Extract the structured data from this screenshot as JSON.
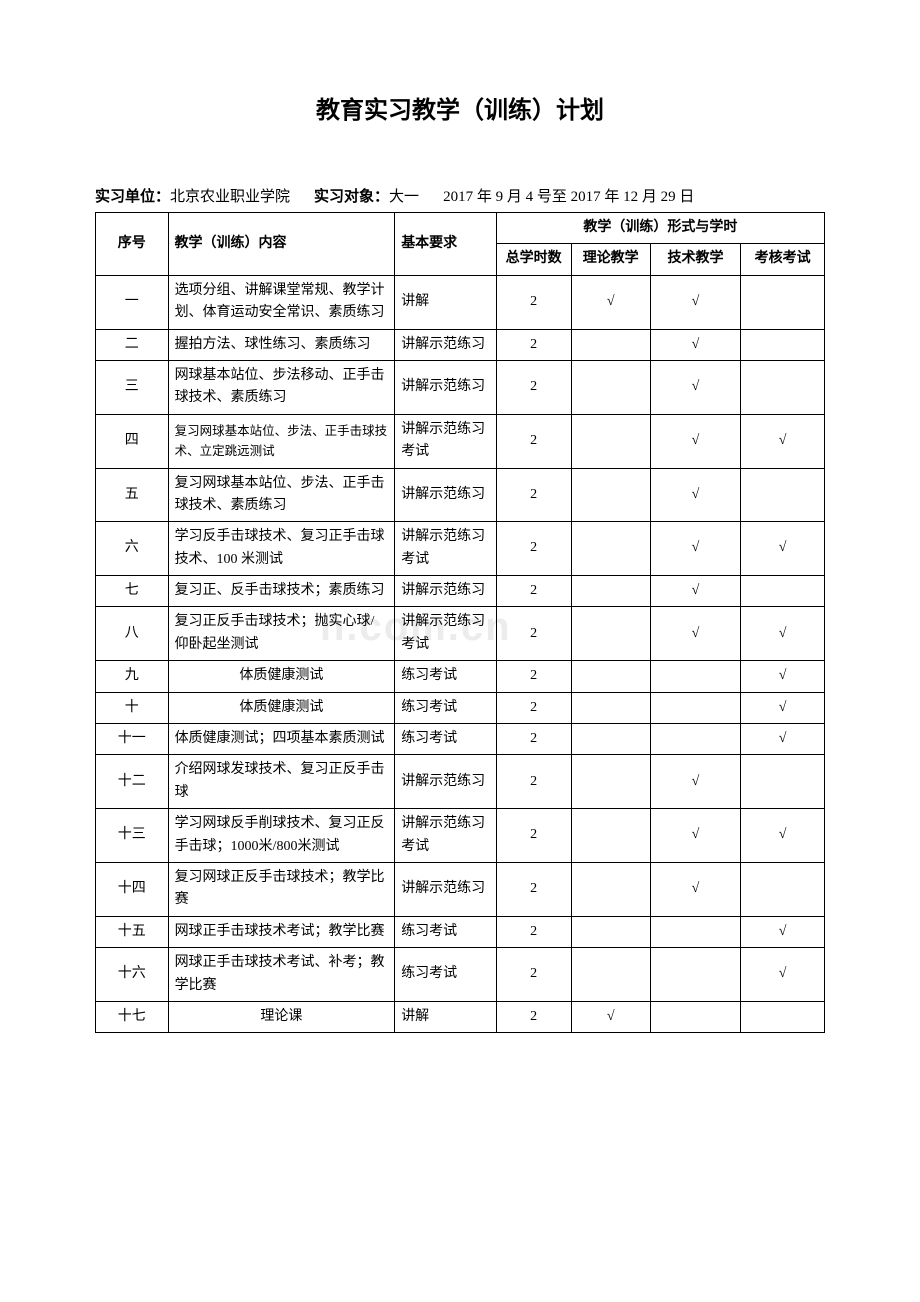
{
  "title": "教育实习教学（训练）计划",
  "meta": {
    "unit_label": "实习单位：",
    "unit_value": "北京农业职业学院",
    "target_label": "实习对象：",
    "target_value": "大一",
    "date_range": "2017 年 9 月 4 号至 2017 年 12 月 29 日"
  },
  "header": {
    "num": "序号",
    "content": "教学（训练）内容",
    "req": "基本要求",
    "form_header": "教学（训练）形式与学时",
    "hours": "总学时数",
    "theory": "理论教学",
    "tech": "技术教学",
    "exam": "考核考试"
  },
  "check": "√",
  "rows": [
    {
      "num": "一",
      "content": "选项分组、讲解课堂常规、教学计划、体育运动安全常识、素质练习",
      "req": "讲解",
      "hours": "2",
      "theory": true,
      "tech": true,
      "exam": false,
      "center": false
    },
    {
      "num": "二",
      "content": "握拍方法、球性练习、素质练习",
      "req": "讲解示范练习",
      "hours": "2",
      "theory": false,
      "tech": true,
      "exam": false,
      "center": false
    },
    {
      "num": "三",
      "content": "网球基本站位、步法移动、正手击球技术、素质练习",
      "req": "讲解示范练习",
      "hours": "2",
      "theory": false,
      "tech": true,
      "exam": false,
      "center": false
    },
    {
      "num": "四",
      "content": "复习网球基本站位、步法、正手击球技术、立定跳远测试",
      "req": "讲解示范练习考试",
      "hours": "2",
      "theory": false,
      "tech": true,
      "exam": true,
      "center": false,
      "small": true
    },
    {
      "num": "五",
      "content": "复习网球基本站位、步法、正手击球技术、素质练习",
      "req": "讲解示范练习",
      "hours": "2",
      "theory": false,
      "tech": true,
      "exam": false,
      "center": false
    },
    {
      "num": "六",
      "content": "学习反手击球技术、复习正手击球技术、100 米测试",
      "req": "讲解示范练习考试",
      "hours": "2",
      "theory": false,
      "tech": true,
      "exam": true,
      "center": false
    },
    {
      "num": "七",
      "content": "复习正、反手击球技术；素质练习",
      "req": "讲解示范练习",
      "hours": "2",
      "theory": false,
      "tech": true,
      "exam": false,
      "center": false
    },
    {
      "num": "八",
      "content": "复习正反手击球技术；抛实心球/仰卧起坐测试",
      "req": "讲解示范练习考试",
      "hours": "2",
      "theory": false,
      "tech": true,
      "exam": true,
      "center": false
    },
    {
      "num": "九",
      "content": "体质健康测试",
      "req": "练习考试",
      "hours": "2",
      "theory": false,
      "tech": false,
      "exam": true,
      "center": true
    },
    {
      "num": "十",
      "content": "体质健康测试",
      "req": "练习考试",
      "hours": "2",
      "theory": false,
      "tech": false,
      "exam": true,
      "center": true
    },
    {
      "num": "十一",
      "content": "体质健康测试；四项基本素质测试",
      "req": "练习考试",
      "hours": "2",
      "theory": false,
      "tech": false,
      "exam": true,
      "center": false
    },
    {
      "num": "十二",
      "content": "介绍网球发球技术、复习正反手击球",
      "req": "讲解示范练习",
      "hours": "2",
      "theory": false,
      "tech": true,
      "exam": false,
      "center": false
    },
    {
      "num": "十三",
      "content": "学习网球反手削球技术、复习正反手击球；1000米/800米测试",
      "req": "讲解示范练习考试",
      "hours": "2",
      "theory": false,
      "tech": true,
      "exam": true,
      "center": false
    },
    {
      "num": "十四",
      "content": "复习网球正反手击球技术；教学比赛",
      "req": "讲解示范练习",
      "hours": "2",
      "theory": false,
      "tech": true,
      "exam": false,
      "center": false
    },
    {
      "num": "十五",
      "content": "网球正手击球技术考试；教学比赛",
      "req": "练习考试",
      "hours": "2",
      "theory": false,
      "tech": false,
      "exam": true,
      "center": false
    },
    {
      "num": "十六",
      "content": "网球正手击球技术考试、补考；教学比赛",
      "req": "练习考试",
      "hours": "2",
      "theory": false,
      "tech": false,
      "exam": true,
      "center": false
    },
    {
      "num": "十七",
      "content": "理论课",
      "req": "讲解",
      "hours": "2",
      "theory": true,
      "tech": false,
      "exam": false,
      "center": true
    }
  ],
  "watermark": "n.com.cn"
}
